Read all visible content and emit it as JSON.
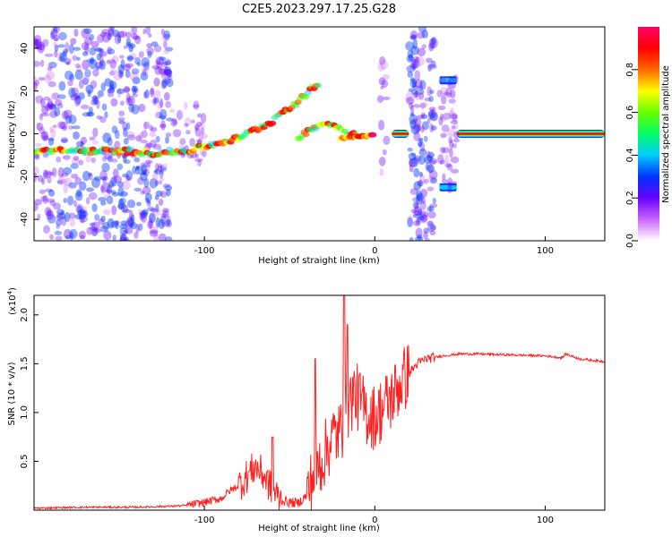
{
  "title": "C2E5.2023.297.17.25.G28",
  "chart_data": [
    {
      "type": "heatmap",
      "xlabel": "Height of straight line (km)",
      "ylabel": "Frequency (Hz)",
      "xlim": [
        -200,
        135
      ],
      "ylim": [
        -50,
        50
      ],
      "xticks": [
        -100,
        0,
        100
      ],
      "yticks": [
        -40,
        -20,
        0,
        20,
        40
      ],
      "colorbar": {
        "label": "Normalized spectral amplitude",
        "range": [
          0,
          1
        ],
        "ticks": [
          "0.0",
          "0.2",
          "0.4",
          "0.6",
          "0.8"
        ],
        "colors": [
          "#ffffff",
          "#cc66ff",
          "#6600ff",
          "#0033ff",
          "#00ccff",
          "#00ff66",
          "#66ff00",
          "#ffff00",
          "#ff6600",
          "#ff0000",
          "#ff0066"
        ]
      },
      "features": {
        "noise_region": {
          "x": [
            -190,
            -120
          ],
          "freq_range": [
            -50,
            50
          ]
        },
        "rising_track": [
          [
            -200,
            -8
          ],
          [
            -150,
            -8
          ],
          [
            -130,
            -9
          ],
          [
            -110,
            -8
          ],
          [
            -95,
            -5
          ],
          [
            -80,
            -2
          ],
          [
            -70,
            2
          ],
          [
            -60,
            6
          ],
          [
            -55,
            10
          ],
          [
            -45,
            15
          ],
          [
            -38,
            20
          ],
          [
            -32,
            24
          ]
        ],
        "branch_track": [
          [
            -45,
            -2
          ],
          [
            -38,
            2
          ],
          [
            -30,
            5
          ],
          [
            -20,
            3
          ],
          [
            -15,
            0
          ],
          [
            -10,
            0
          ]
        ],
        "strong_line": [
          [
            -20,
            -2
          ],
          [
            -5,
            -1
          ],
          [
            0,
            0
          ],
          [
            10,
            0
          ],
          [
            20,
            0
          ],
          [
            50,
            0
          ],
          [
            135,
            0
          ]
        ],
        "noise_band_2": {
          "x": [
            20,
            35
          ],
          "freq_range": [
            -50,
            50
          ]
        },
        "side_bands": {
          "x": [
            38,
            48
          ],
          "freq": [
            25,
            -25
          ]
        }
      }
    },
    {
      "type": "line",
      "xlabel": "Height of straight line (km)",
      "ylabel": "SNR (10 * v/v)",
      "yscale_label": "(x10",
      "yscale_exp": "4",
      "xlim": [
        -200,
        135
      ],
      "ylim": [
        0,
        2.2
      ],
      "xticks": [
        -100,
        0,
        100
      ],
      "yticks": [
        "0.5",
        "1.0",
        "1.5",
        "2.0"
      ],
      "series": [
        {
          "color": "#ff2020",
          "x": [
            -200,
            -170,
            -140,
            -120,
            -110,
            -100,
            -90,
            -85,
            -80,
            -75,
            -70,
            -65,
            -60,
            -55,
            -50,
            -45,
            -40,
            -35,
            -30,
            -25,
            -20,
            -15,
            -12,
            -10,
            -5,
            0,
            5,
            10,
            15,
            20,
            25,
            30,
            40,
            50,
            60,
            80,
            100,
            110,
            112,
            120,
            135
          ],
          "y": [
            0.02,
            0.03,
            0.03,
            0.04,
            0.05,
            0.08,
            0.12,
            0.2,
            0.25,
            0.35,
            0.45,
            0.35,
            0.2,
            0.1,
            0.08,
            0.07,
            0.15,
            0.4,
            0.55,
            0.75,
            0.8,
            1.1,
            1.2,
            1.15,
            1.0,
            0.95,
            1.05,
            1.15,
            1.3,
            1.4,
            1.5,
            1.55,
            1.58,
            1.6,
            1.6,
            1.59,
            1.58,
            1.56,
            1.6,
            1.55,
            1.52
          ]
        }
      ],
      "spikes": [
        [
          -18,
          2.2
        ],
        [
          -16,
          1.9
        ],
        [
          -35,
          1.55
        ],
        [
          -60,
          0.75
        ]
      ]
    }
  ]
}
